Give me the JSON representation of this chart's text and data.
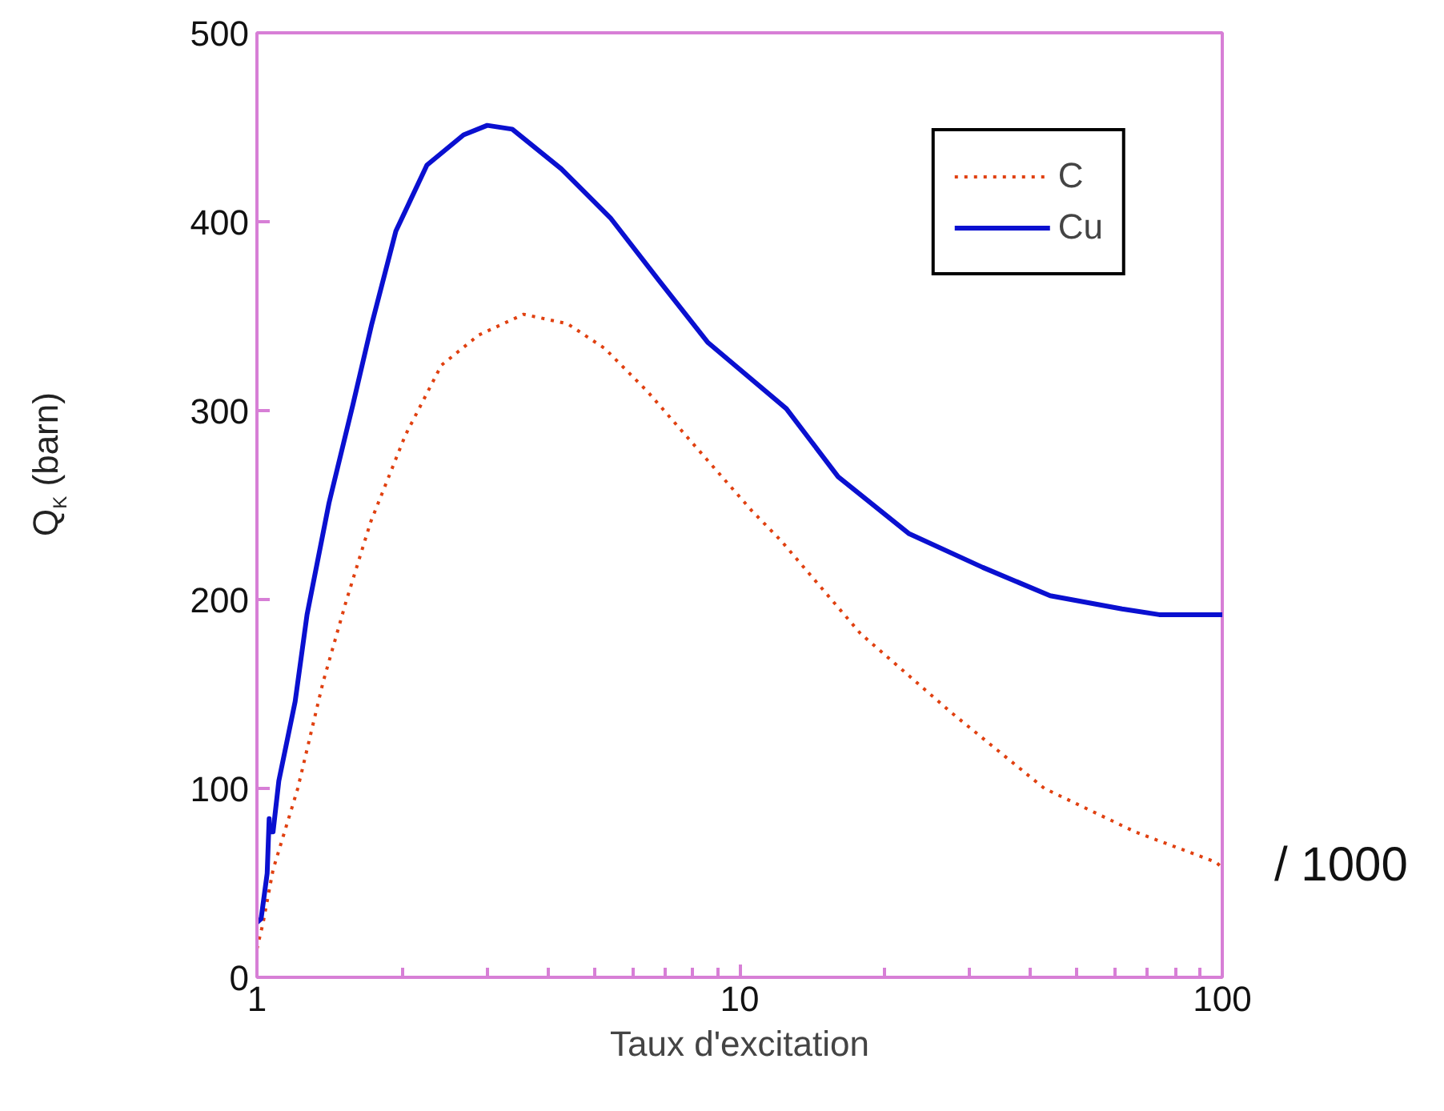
{
  "chart_data": {
    "type": "line",
    "xlabel": "Taux d'excitation",
    "ylabel": "Q$_{K}$ (barn)",
    "log": "x",
    "xlim": [
      1,
      100
    ],
    "xticks": [
      1,
      10,
      100
    ],
    "ylim": [
      0,
      500
    ],
    "yticks": [
      0,
      100,
      200,
      300,
      400,
      500
    ],
    "grid": false,
    "legend": "top right",
    "marker": "none",
    "annotations": [
      "/ 1000"
    ],
    "series": [
      {
        "name": "C",
        "color": "#e04010",
        "line_style": "dotted",
        "x": [
          1,
          1.03,
          1.08,
          1.215,
          1.37,
          1.53,
          1.72,
          2.03,
          2.41,
          2.88,
          3.57,
          4.4,
          5.25,
          6.45,
          8.1,
          10.6,
          12.2,
          17.8,
          27.5,
          42.8,
          66,
          97,
          100
        ],
        "values": [
          15,
          29,
          57,
          100,
          156,
          199,
          241,
          287,
          324,
          340,
          351,
          346,
          333,
          310,
          281,
          247,
          231,
          182,
          140,
          100,
          77,
          61,
          58
        ]
      },
      {
        "name": "Cu",
        "color": "#0a10d0",
        "line_style": "solid",
        "x": [
          1,
          1.02,
          1.05,
          1.06,
          1.06,
          1.08,
          1.11,
          1.2,
          1.27,
          1.41,
          1.58,
          1.73,
          1.94,
          2.25,
          2.68,
          3.0,
          3.38,
          4.27,
          5.4,
          6.8,
          8.6,
          12.5,
          16,
          22.4,
          31.9,
          44,
          62,
          74,
          96,
          100
        ],
        "values": [
          29,
          31,
          55,
          84,
          77,
          77,
          104,
          146,
          192,
          251,
          303,
          346,
          395,
          430,
          446,
          451,
          449,
          428,
          402,
          369,
          336,
          301,
          265,
          235,
          217,
          202,
          195,
          192,
          192,
          192
        ]
      }
    ]
  }
}
